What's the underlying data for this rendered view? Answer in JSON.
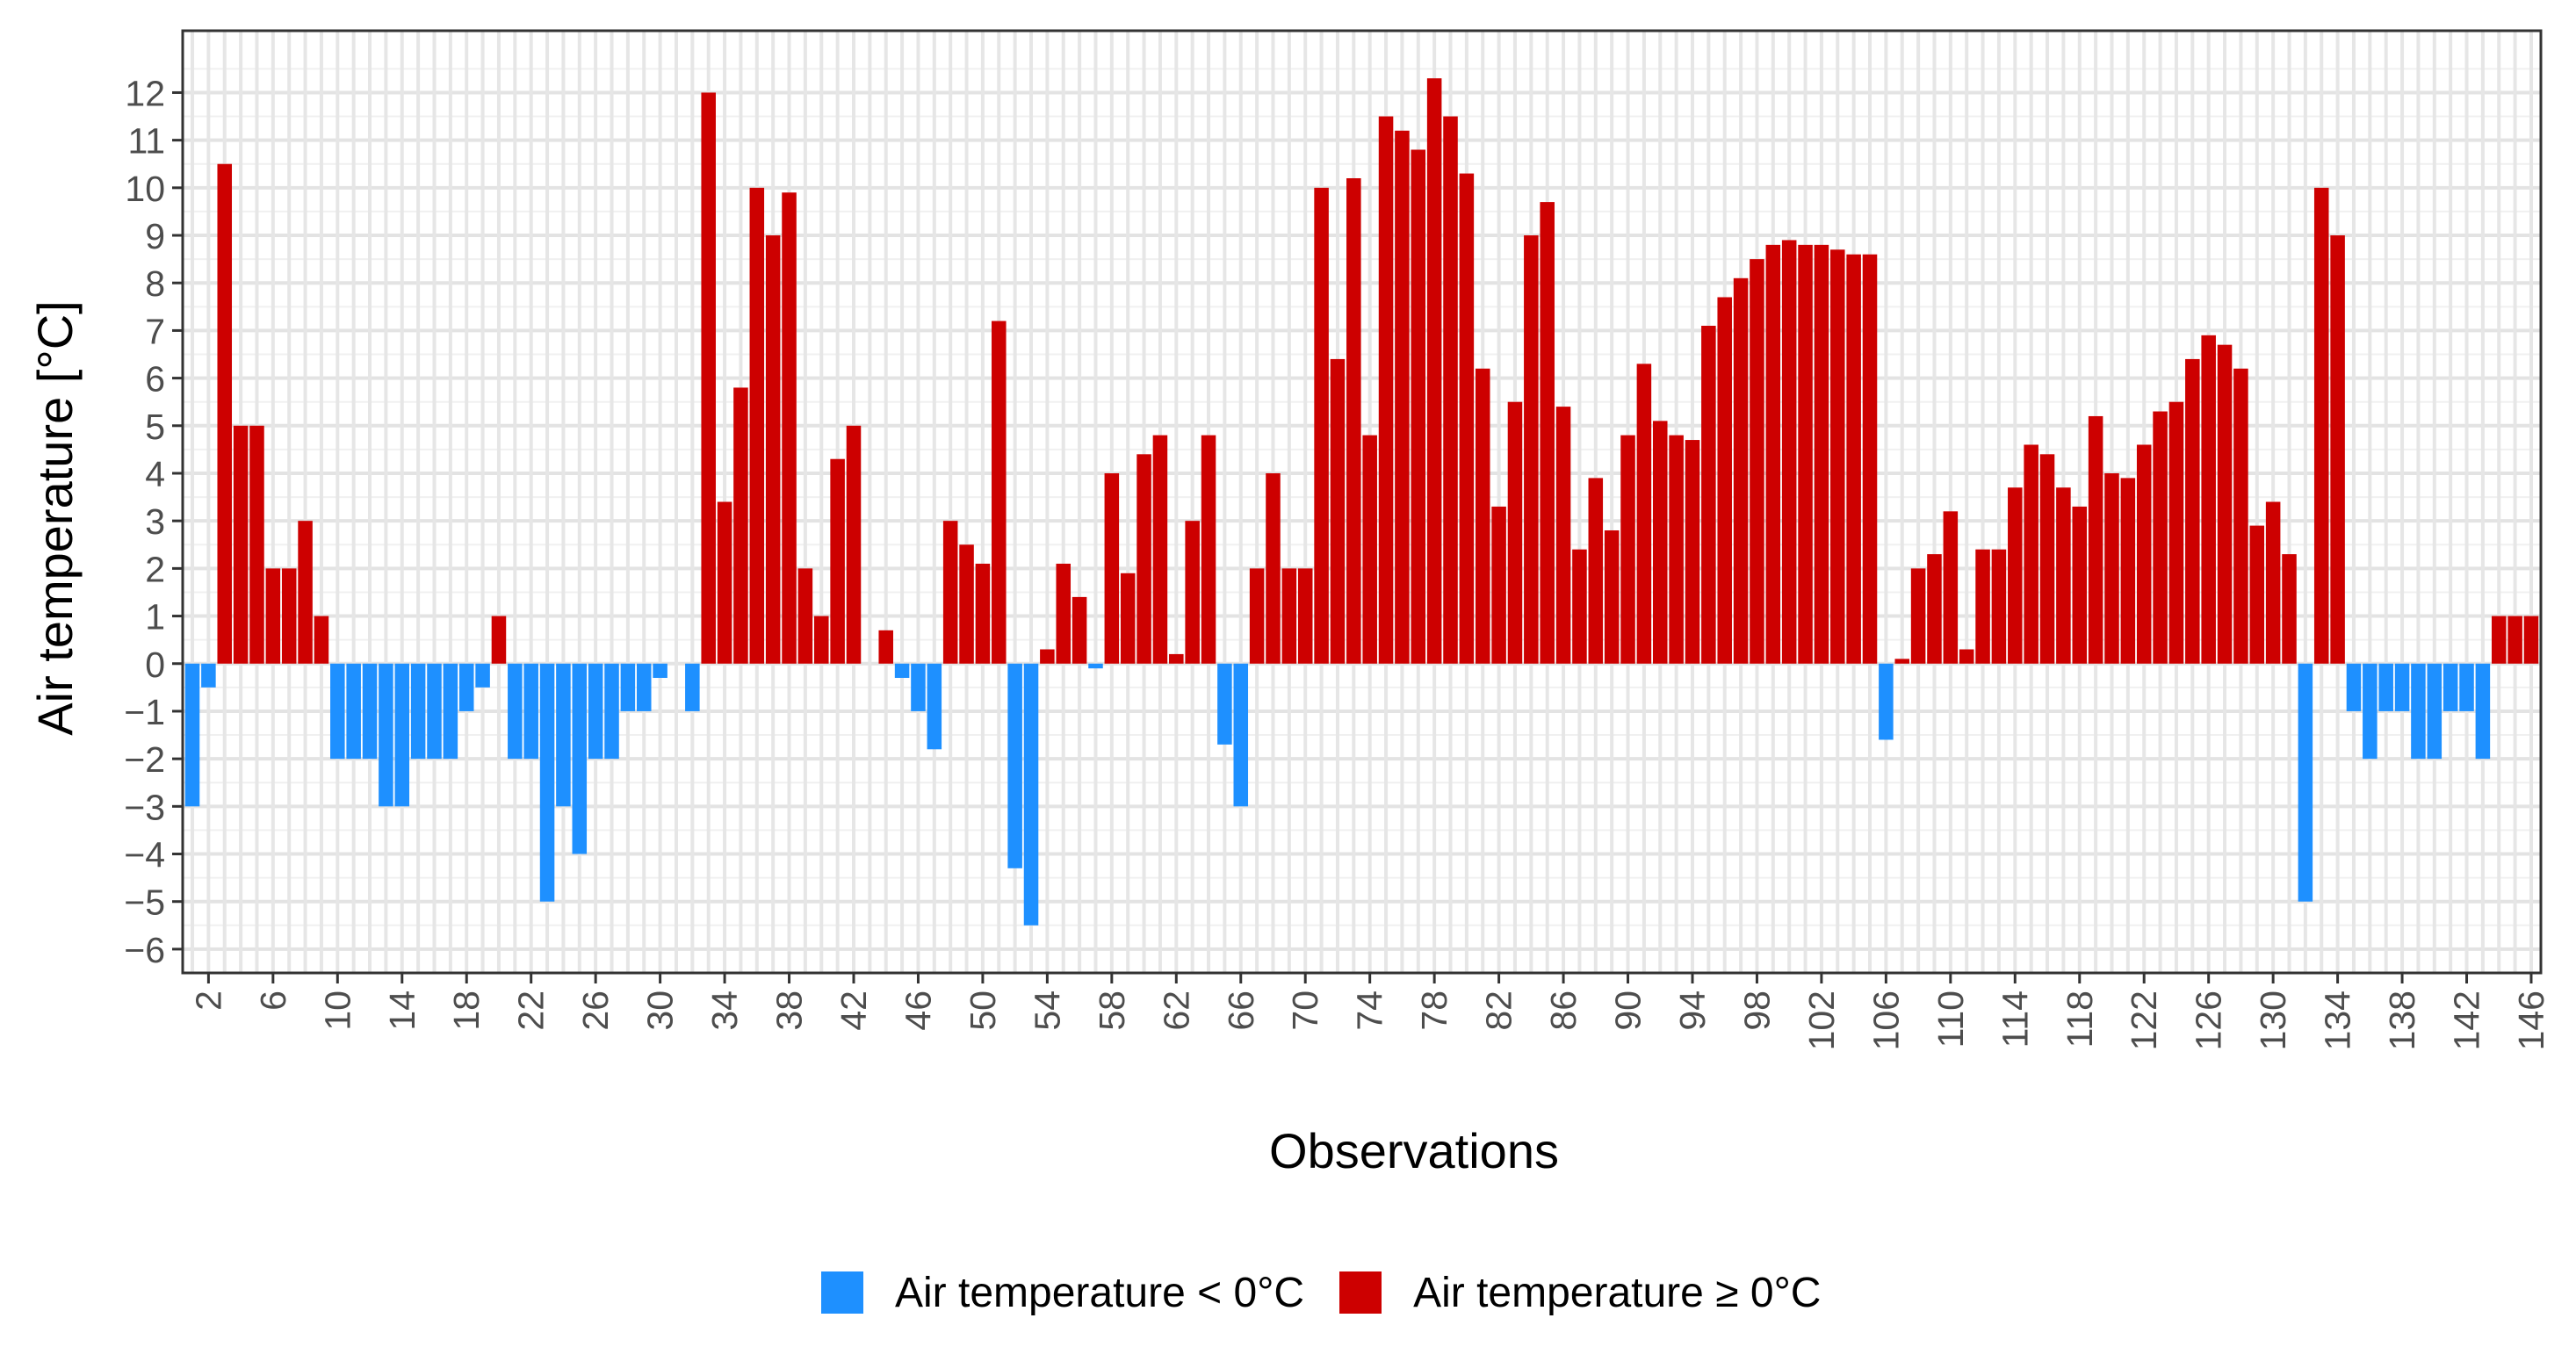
{
  "chart_data": {
    "type": "bar",
    "title": "",
    "xlabel": "Observations",
    "ylabel": "Air temperature [°C]",
    "ylim": [
      -6.5,
      13.3
    ],
    "y_ticks": [
      -6,
      -5,
      -4,
      -3,
      -2,
      -1,
      0,
      1,
      2,
      3,
      4,
      5,
      6,
      7,
      8,
      9,
      10,
      11,
      12
    ],
    "x_ticks": [
      2,
      6,
      10,
      14,
      18,
      22,
      26,
      30,
      34,
      38,
      42,
      46,
      50,
      54,
      58,
      62,
      66,
      70,
      74,
      78,
      82,
      86,
      90,
      94,
      98,
      102,
      106,
      110,
      114,
      118,
      122,
      126,
      130,
      134,
      138,
      142,
      146
    ],
    "grid": true,
    "legend_position": "bottom",
    "series": [
      {
        "name": "Air temperature < 0°C",
        "color": "#1E90FF"
      },
      {
        "name": "Air temperature ≥ 0°C",
        "color": "#CD0000"
      }
    ],
    "x": [
      1,
      2,
      3,
      4,
      5,
      6,
      7,
      8,
      9,
      10,
      11,
      12,
      13,
      14,
      15,
      16,
      17,
      18,
      19,
      20,
      21,
      22,
      23,
      24,
      25,
      26,
      27,
      28,
      29,
      30,
      31,
      32,
      33,
      34,
      35,
      36,
      37,
      38,
      39,
      40,
      41,
      42,
      43,
      44,
      45,
      46,
      47,
      48,
      49,
      50,
      51,
      52,
      53,
      54,
      55,
      56,
      57,
      58,
      59,
      60,
      61,
      62,
      63,
      64,
      65,
      66,
      67,
      68,
      69,
      70,
      71,
      72,
      73,
      74,
      75,
      76,
      77,
      78,
      79,
      80,
      81,
      82,
      83,
      84,
      85,
      86,
      87,
      88,
      89,
      90,
      91,
      92,
      93,
      94,
      95,
      96,
      97,
      98,
      99,
      100,
      101,
      102,
      103,
      104,
      105,
      106,
      107,
      108,
      109,
      110,
      111,
      112,
      113,
      114,
      115,
      116,
      117,
      118,
      119,
      120,
      121,
      122,
      123,
      124,
      125,
      126,
      127,
      128,
      129,
      130,
      131,
      132,
      133,
      134,
      135,
      136,
      137,
      138,
      139,
      140,
      141,
      142,
      143,
      144,
      145,
      146
    ],
    "values": [
      -3,
      -0.5,
      10.5,
      5,
      5,
      2,
      2,
      3,
      1,
      -2,
      -2,
      -2,
      -3,
      -3,
      -2,
      -2,
      -2,
      -1,
      -0.5,
      1,
      -2,
      -2,
      -5,
      -3,
      -4,
      -2,
      -2,
      -1,
      -1,
      -0.3,
      0,
      -1,
      12,
      3.4,
      5.8,
      10,
      9,
      9.9,
      2,
      1,
      4.3,
      5,
      0,
      0.7,
      -0.3,
      -1,
      -1.8,
      3,
      2.5,
      2.1,
      7.2,
      -4.3,
      -5.5,
      0.3,
      2.1,
      1.4,
      -0.1,
      4,
      1.9,
      4.4,
      4.8,
      0.2,
      3,
      4.8,
      -1.7,
      -3,
      2,
      4,
      2,
      2,
      10,
      6.4,
      10.2,
      4.8,
      11.5,
      11.2,
      10.8,
      12.3,
      11.5,
      10.3,
      6.2,
      3.3,
      5.5,
      9,
      9.7,
      5.4,
      2.4,
      3.9,
      2.8,
      4.8,
      6.3,
      5.1,
      4.8,
      4.7,
      7.1,
      7.7,
      8.1,
      8.5,
      8.8,
      8.9,
      8.8,
      8.8,
      8.7,
      8.6,
      8.6,
      -1.6,
      0.1,
      2,
      2.3,
      3.2,
      0.3,
      2.4,
      2.4,
      3.7,
      4.6,
      4.4,
      3.7,
      3.3,
      5.2,
      4,
      3.9,
      4.6,
      5.3,
      5.5,
      6.4,
      6.9,
      6.7,
      6.2,
      2.9,
      3.4,
      2.3,
      -5,
      10,
      9,
      -1,
      -2,
      -1,
      -1,
      -2,
      -2,
      -1,
      -1,
      -2,
      1,
      1,
      1
    ]
  }
}
